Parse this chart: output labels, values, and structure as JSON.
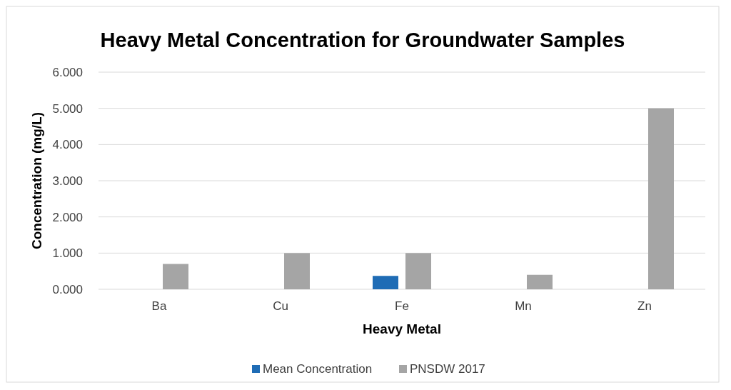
{
  "chart_data": {
    "type": "bar",
    "title": "Heavy Metal Concentration for Groundwater Samples",
    "xlabel": "Heavy Metal",
    "ylabel": "Concentration (mg/L)",
    "categories": [
      "Ba",
      "Cu",
      "Fe",
      "Mn",
      "Zn"
    ],
    "series": [
      {
        "name": "Mean Concentration",
        "color": "#1f6cb5",
        "values": [
          0,
          0,
          0.37,
          0,
          0
        ]
      },
      {
        "name": "PNSDW 2017",
        "color": "#a5a5a5",
        "values": [
          0.7,
          1.0,
          1.0,
          0.4,
          5.0
        ]
      }
    ],
    "ylim": [
      0,
      6
    ],
    "yticks": [
      {
        "value": 0,
        "label": "0.000"
      },
      {
        "value": 1,
        "label": "1.000"
      },
      {
        "value": 2,
        "label": "2.000"
      },
      {
        "value": 3,
        "label": "3.000"
      },
      {
        "value": 4,
        "label": "4.000"
      },
      {
        "value": 5,
        "label": "5.000"
      },
      {
        "value": 6,
        "label": "6.000"
      }
    ],
    "grid": "y",
    "legend": "bottom"
  }
}
